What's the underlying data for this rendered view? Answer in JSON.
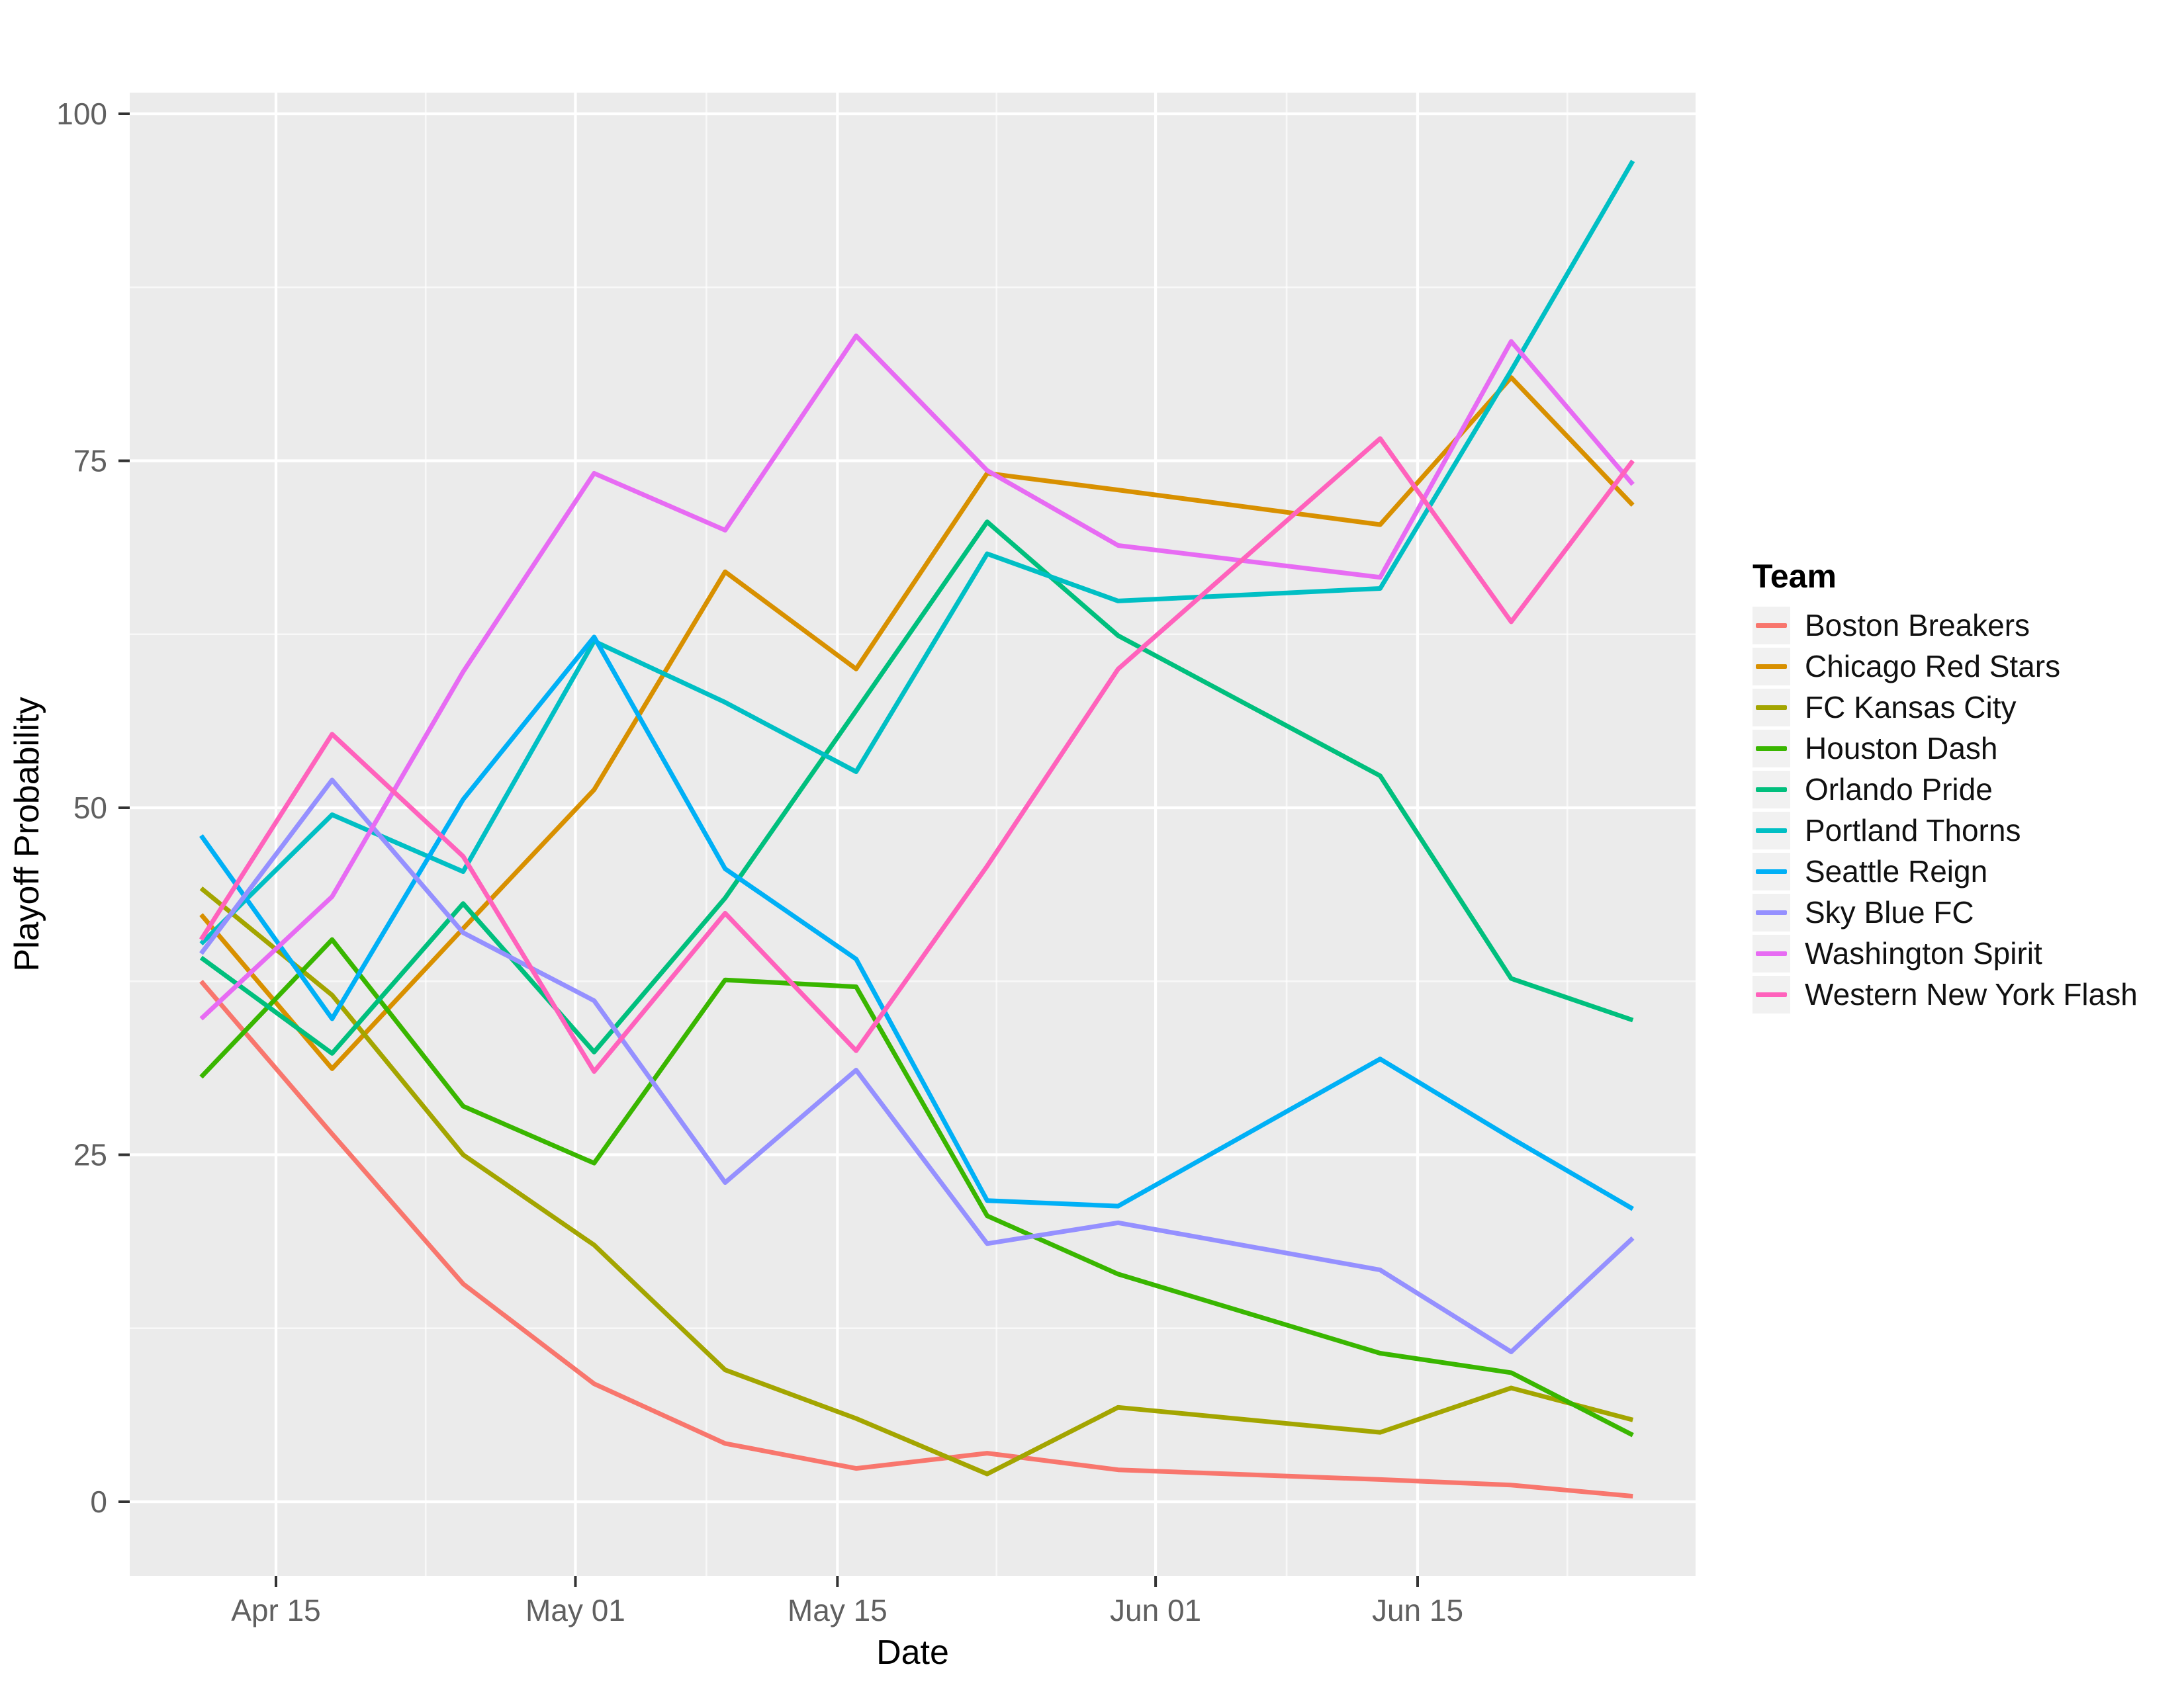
{
  "figure": {
    "x_axis": {
      "title": "Date",
      "major_ticks": [
        {
          "label": "Apr 15",
          "day": 4
        },
        {
          "label": "May 01",
          "day": 20
        },
        {
          "label": "May 15",
          "day": 34
        },
        {
          "label": "Jun 01",
          "day": 51
        },
        {
          "label": "Jun 15",
          "day": 65
        }
      ],
      "minor_tick_days": [
        12,
        27,
        42.5,
        58,
        73
      ]
    },
    "y_axis": {
      "title": "Playoff Probability",
      "major_ticks": [
        0,
        25,
        50,
        75,
        100
      ],
      "minor_ticks": [
        12.5,
        37.5,
        62.5,
        87.5
      ]
    },
    "legend": {
      "title": "Team"
    }
  },
  "chart_data": {
    "type": "line",
    "title": "",
    "xlabel": "Date",
    "ylabel": "Playoff Probability",
    "ylim": [
      0,
      100
    ],
    "x_date_labels": [
      "Apr 11",
      "Apr 18",
      "Apr 25",
      "May 02",
      "May 09",
      "May 16",
      "May 23",
      "May 30",
      "Jun 13",
      "Jun 20",
      "Jun 26"
    ],
    "x_days": [
      0,
      7,
      14,
      21,
      28,
      35,
      42,
      49,
      63,
      70,
      76.5
    ],
    "grid": "on",
    "legend_position": "right",
    "panel_background": "#EBEBEB",
    "gridline_color": "#FFFFFF",
    "tick_color": "#333333",
    "axis_text_color": "#606060",
    "axis_title_color": "#000000",
    "series": [
      {
        "name": "Boston Breakers",
        "color": "#F8766D",
        "values": [
          37.5,
          26.5,
          15.7,
          8.5,
          4.2,
          2.4,
          3.5,
          2.3,
          1.6,
          1.2,
          0.4
        ]
      },
      {
        "name": "Chicago Red Stars",
        "color": "#D89000",
        "values": [
          42.3,
          31.2,
          41.3,
          51.3,
          67.0,
          60.0,
          74.1,
          72.9,
          70.4,
          81.0,
          71.8
        ]
      },
      {
        "name": "FC Kansas City",
        "color": "#A3A500",
        "values": [
          44.2,
          36.5,
          25.0,
          18.5,
          9.5,
          6.0,
          2.0,
          6.8,
          5.0,
          8.2,
          5.9
        ]
      },
      {
        "name": "Houston Dash",
        "color": "#39B600",
        "values": [
          30.6,
          40.5,
          28.5,
          24.4,
          37.6,
          37.1,
          20.6,
          16.4,
          10.7,
          9.3,
          4.8
        ]
      },
      {
        "name": "Orlando Pride",
        "color": "#00BF7D",
        "values": [
          39.2,
          32.3,
          43.1,
          32.4,
          43.5,
          57.0,
          70.6,
          62.4,
          52.3,
          37.7,
          34.7
        ]
      },
      {
        "name": "Portland Thorns",
        "color": "#00BFC4",
        "values": [
          40.2,
          49.5,
          45.4,
          62.0,
          57.6,
          52.6,
          68.3,
          64.9,
          65.8,
          81.5,
          96.6
        ]
      },
      {
        "name": "Seattle Reign",
        "color": "#00B0F6",
        "values": [
          48.0,
          34.8,
          50.6,
          62.3,
          45.6,
          39.1,
          21.7,
          21.3,
          31.9,
          26.2,
          21.1
        ]
      },
      {
        "name": "Sky Blue FC",
        "color": "#9590FF",
        "values": [
          39.5,
          52.0,
          41.0,
          36.1,
          23.0,
          31.1,
          18.6,
          20.1,
          16.7,
          10.8,
          19.0
        ]
      },
      {
        "name": "Washington Spirit",
        "color": "#E76BF3",
        "values": [
          34.8,
          43.6,
          59.8,
          74.1,
          70.0,
          84.0,
          74.3,
          68.9,
          66.6,
          83.6,
          73.3
        ]
      },
      {
        "name": "Western New York Flash",
        "color": "#FF62BC",
        "values": [
          40.5,
          55.3,
          46.5,
          31.0,
          42.4,
          32.5,
          45.8,
          60.0,
          76.6,
          63.4,
          75.0
        ]
      }
    ]
  }
}
